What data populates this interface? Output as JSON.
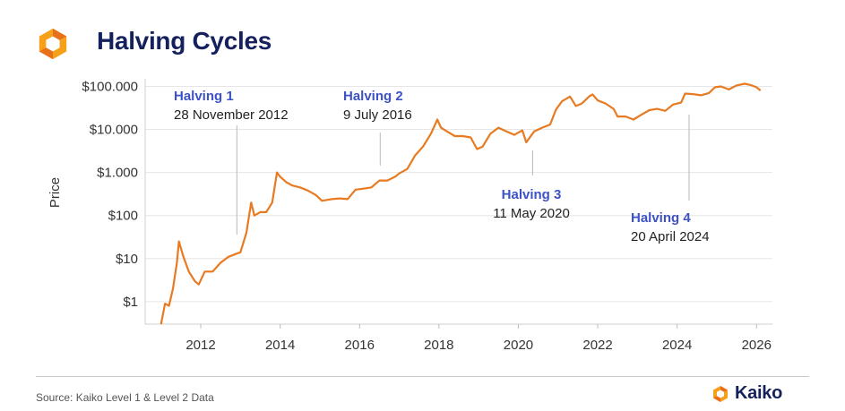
{
  "header": {
    "title": "Halving Cycles",
    "logo_icon": "kaiko-logo-icon"
  },
  "footer": {
    "source": "Source: Kaiko Level 1 & Level 2 Data",
    "brand": "Kaiko",
    "brand_icon": "kaiko-logo-icon"
  },
  "colors": {
    "line": "#e87a22",
    "title": "#15215c",
    "halving_label": "#3d52c4",
    "grid": "#e6e6e6",
    "logo_orange": "#f5a21a"
  },
  "chart_data": {
    "type": "line",
    "title": "Halving Cycles",
    "xlabel": "",
    "ylabel": "Price",
    "y_scale": "log",
    "ylim": [
      0.3,
      150000
    ],
    "xlim": [
      2010.6,
      2026.4
    ],
    "grid": true,
    "y_ticks": [
      {
        "value": 1,
        "label": "$1"
      },
      {
        "value": 10,
        "label": "$10"
      },
      {
        "value": 100,
        "label": "$100"
      },
      {
        "value": 1000,
        "label": "$1.000"
      },
      {
        "value": 10000,
        "label": "$10.000"
      },
      {
        "value": 100000,
        "label": "$100.000"
      }
    ],
    "x_ticks": [
      {
        "value": 2012,
        "label": "2012"
      },
      {
        "value": 2014,
        "label": "2014"
      },
      {
        "value": 2016,
        "label": "2016"
      },
      {
        "value": 2018,
        "label": "2018"
      },
      {
        "value": 2020,
        "label": "2020"
      },
      {
        "value": 2022,
        "label": "2022"
      },
      {
        "value": 2024,
        "label": "2024"
      },
      {
        "value": 2026,
        "label": "2026"
      }
    ],
    "series": [
      {
        "x": [
          2011.0,
          2011.1,
          2011.2,
          2011.3,
          2011.4,
          2011.45,
          2011.55,
          2011.7,
          2011.85,
          2011.95,
          2012.1,
          2012.3,
          2012.5,
          2012.7,
          2012.9,
          2013.0,
          2013.15,
          2013.27,
          2013.35,
          2013.5,
          2013.65,
          2013.8,
          2013.92,
          2014.0,
          2014.15,
          2014.3,
          2014.5,
          2014.7,
          2014.9,
          2015.05,
          2015.3,
          2015.5,
          2015.7,
          2015.9,
          2016.1,
          2016.3,
          2016.5,
          2016.7,
          2016.9,
          2017.0,
          2017.2,
          2017.4,
          2017.6,
          2017.8,
          2017.96,
          2018.05,
          2018.2,
          2018.4,
          2018.6,
          2018.8,
          2018.96,
          2019.1,
          2019.3,
          2019.5,
          2019.7,
          2019.9,
          2020.1,
          2020.2,
          2020.4,
          2020.6,
          2020.8,
          2020.95,
          2021.1,
          2021.3,
          2021.45,
          2021.6,
          2021.8,
          2021.87,
          2022.0,
          2022.2,
          2022.4,
          2022.5,
          2022.7,
          2022.9,
          2023.1,
          2023.3,
          2023.5,
          2023.7,
          2023.9,
          2024.1,
          2024.2,
          2024.4,
          2024.6,
          2024.8,
          2024.95,
          2025.1,
          2025.3,
          2025.5,
          2025.7,
          2025.85,
          2026.0,
          2026.1
        ],
        "y": [
          0.3,
          0.9,
          0.8,
          2,
          8,
          25,
          12,
          5,
          3,
          2.5,
          5,
          5,
          8,
          11,
          13,
          14,
          40,
          200,
          100,
          120,
          120,
          200,
          1000,
          800,
          600,
          500,
          450,
          380,
          300,
          220,
          240,
          250,
          240,
          400,
          420,
          450,
          650,
          650,
          800,
          950,
          1200,
          2500,
          4000,
          8000,
          17000,
          11000,
          9000,
          7000,
          7000,
          6500,
          3500,
          4000,
          8000,
          11000,
          9000,
          7500,
          9500,
          5000,
          9000,
          11000,
          13000,
          29000,
          45000,
          58000,
          35000,
          40000,
          60000,
          65000,
          47000,
          40000,
          30000,
          20000,
          20000,
          17000,
          22000,
          28000,
          30000,
          27000,
          38000,
          42000,
          68000,
          66000,
          62000,
          70000,
          95000,
          100000,
          85000,
          105000,
          115000,
          108000,
          95000,
          80000
        ]
      }
    ],
    "annotations": [
      {
        "title": "Halving 1",
        "date": "28 November 2012",
        "x": 2012.91
      },
      {
        "title": "Halving 2",
        "date": "9 July 2016",
        "x": 2016.52
      },
      {
        "title": "Halving 3",
        "date": "11 May 2020",
        "x": 2020.36
      },
      {
        "title": "Halving 4",
        "date": "20 April 2024",
        "x": 2024.3
      }
    ]
  }
}
